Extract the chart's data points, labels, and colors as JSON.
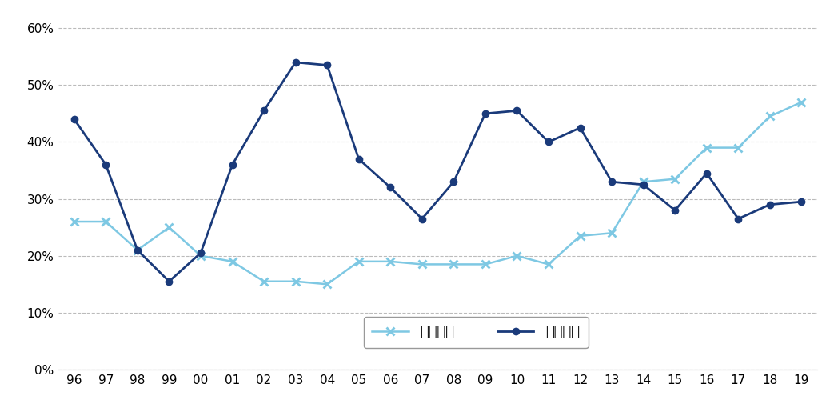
{
  "year_labels": [
    "96",
    "97",
    "98",
    "99",
    "00",
    "01",
    "02",
    "03",
    "04",
    "05",
    "06",
    "07",
    "08",
    "09",
    "10",
    "11",
    "12",
    "13",
    "14",
    "15",
    "16",
    "17",
    "18",
    "19"
  ],
  "direct_investment": [
    0.26,
    0.26,
    0.21,
    0.25,
    0.2,
    0.19,
    0.155,
    0.155,
    0.15,
    0.19,
    0.19,
    0.185,
    0.185,
    0.185,
    0.2,
    0.185,
    0.235,
    0.24,
    0.33,
    0.335,
    0.39,
    0.39,
    0.445,
    0.47
  ],
  "securities_investment": [
    0.44,
    0.36,
    0.21,
    0.155,
    0.205,
    0.36,
    0.455,
    0.54,
    0.535,
    0.37,
    0.32,
    0.265,
    0.33,
    0.45,
    0.455,
    0.4,
    0.425,
    0.33,
    0.325,
    0.28,
    0.345,
    0.265,
    0.29,
    0.295
  ],
  "direct_color": "#7EC8E3",
  "securities_color": "#1A3A7A",
  "ylim": [
    0,
    0.62
  ],
  "yticks": [
    0.0,
    0.1,
    0.2,
    0.3,
    0.4,
    0.5,
    0.6
  ],
  "ytick_labels": [
    "0%",
    "10%",
    "20%",
    "30%",
    "40%",
    "50%",
    "60%"
  ],
  "legend_direct": "直接投資",
  "legend_securities": "証券投資",
  "background_color": "#ffffff",
  "grid_color": "#bbbbbb"
}
